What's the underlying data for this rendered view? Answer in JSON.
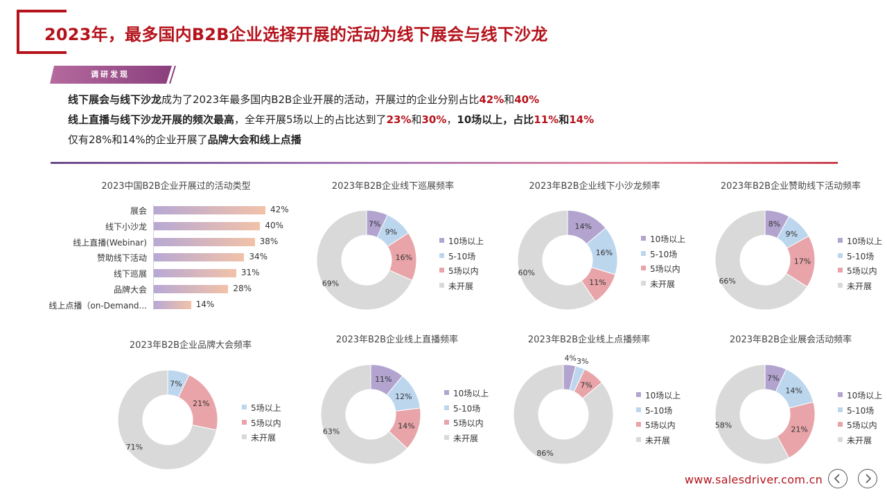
{
  "header": {
    "title": "2023年，最多国内B2B企业选择开展的活动为线下展会与线下沙龙",
    "badge": "调研发现"
  },
  "findings": [
    [
      {
        "t": "线下展会与线下沙龙",
        "s": "b"
      },
      {
        "t": "成为了2023年最多国内B2B企业开展的活动，开展过的企业分别占比"
      },
      {
        "t": "42%",
        "s": "r"
      },
      {
        "t": "和"
      },
      {
        "t": "40%",
        "s": "r"
      }
    ],
    [
      {
        "t": "线上直播与线下沙龙开展的频次最高",
        "s": "b"
      },
      {
        "t": "，全年开展5场以上的占比达到了"
      },
      {
        "t": "23%",
        "s": "r"
      },
      {
        "t": "和"
      },
      {
        "t": "30%",
        "s": "r"
      },
      {
        "t": "，"
      },
      {
        "t": "10场以上，占比",
        "s": "b"
      },
      {
        "t": "11%",
        "s": "r"
      },
      {
        "t": "和",
        "s": "b"
      },
      {
        "t": "14%",
        "s": "r"
      }
    ],
    [
      {
        "t": "仅有28%和14%的企业开展了"
      },
      {
        "t": "品牌大会和线上点播",
        "s": "b"
      }
    ]
  ],
  "colors": {
    "brand": "#b5121b",
    "slice_10plus": "#b2a4cf",
    "slice_5to10": "#bcd6ee",
    "slice_under5": "#e8a4a8",
    "slice_none": "#d9d9d9"
  },
  "chart_data": [
    {
      "id": "activity-types",
      "type": "bar",
      "orientation": "horizontal",
      "title": "2023中国B2B企业开展过的活动类型",
      "categories": [
        "展会",
        "线下小沙龙",
        "线上直播(Webinar)",
        "赞助线下活动",
        "线下巡展",
        "品牌大会",
        "线上点播（on-Demand..."
      ],
      "values": [
        42,
        40,
        38,
        34,
        31,
        28,
        14
      ],
      "value_labels": [
        "42%",
        "40%",
        "38%",
        "34%",
        "31%",
        "28%",
        "14%"
      ],
      "unit": "%"
    },
    {
      "id": "tour-frequency",
      "type": "pie",
      "title": "2023年B2B企业线下巡展频率",
      "legend": [
        "10场以上",
        "5-10场",
        "5场以内",
        "未开展"
      ],
      "keys": [
        "10plus",
        "5to10",
        "under5",
        "none"
      ],
      "values": [
        7,
        9,
        16,
        69
      ],
      "labels": [
        "7%",
        "9%",
        "16%",
        "69%"
      ]
    },
    {
      "id": "salon-frequency",
      "type": "pie",
      "title": "2023年B2B企业线下小沙龙频率",
      "legend": [
        "10场以上",
        "5-10场",
        "5场以内",
        "未开展"
      ],
      "keys": [
        "10plus",
        "5to10",
        "under5",
        "none"
      ],
      "values": [
        14,
        16,
        11,
        60
      ],
      "labels": [
        "14%",
        "16%",
        "11%",
        "60%"
      ]
    },
    {
      "id": "sponsor-frequency",
      "type": "pie",
      "title": "2023年B2B企业赞助线下活动频率",
      "legend": [
        "10场以上",
        "5-10场",
        "5场以内",
        "未开展"
      ],
      "keys": [
        "10plus",
        "5to10",
        "under5",
        "none"
      ],
      "values": [
        8,
        9,
        17,
        66
      ],
      "labels": [
        "8%",
        "9%",
        "17%",
        "66%"
      ]
    },
    {
      "id": "brand-conference-frequency",
      "type": "pie",
      "title": "2023年B2B企业品牌大会频率",
      "legend": [
        "5场以上",
        "5场以内",
        "未开展"
      ],
      "keys": [
        "5to10",
        "under5",
        "none"
      ],
      "values": [
        7,
        21,
        71
      ],
      "labels": [
        "7%",
        "21%",
        "71%"
      ]
    },
    {
      "id": "live-frequency",
      "type": "pie",
      "title": "2023年B2B企业线上直播频率",
      "legend": [
        "10场以上",
        "5-10场",
        "5场以内",
        "未开展"
      ],
      "keys": [
        "10plus",
        "5to10",
        "under5",
        "none"
      ],
      "values": [
        11,
        12,
        14,
        63
      ],
      "labels": [
        "11%",
        "12%",
        "14%",
        "63%"
      ]
    },
    {
      "id": "ondemand-frequency",
      "type": "pie",
      "title": "2023年B2B企业线上点播频率",
      "legend": [
        "10场以上",
        "5-10场",
        "5场以内",
        "未开展"
      ],
      "keys": [
        "10plus",
        "5to10",
        "under5",
        "none"
      ],
      "values": [
        4,
        3,
        7,
        86
      ],
      "labels": [
        "4%",
        "3%",
        "7%",
        "86%"
      ]
    },
    {
      "id": "expo-frequency",
      "type": "pie",
      "title": "2023年B2B企业展会活动频率",
      "legend": [
        "10场以上",
        "5-10场",
        "5场以内",
        "未开展"
      ],
      "keys": [
        "10plus",
        "5to10",
        "under5",
        "none"
      ],
      "values": [
        7,
        14,
        21,
        58
      ],
      "labels": [
        "7%",
        "14%",
        "21%",
        "58%"
      ]
    }
  ],
  "footer": {
    "url": "www.salesdriver.com.cn",
    "prev_icon": "chevron-left-icon",
    "next_icon": "chevron-right-icon"
  }
}
